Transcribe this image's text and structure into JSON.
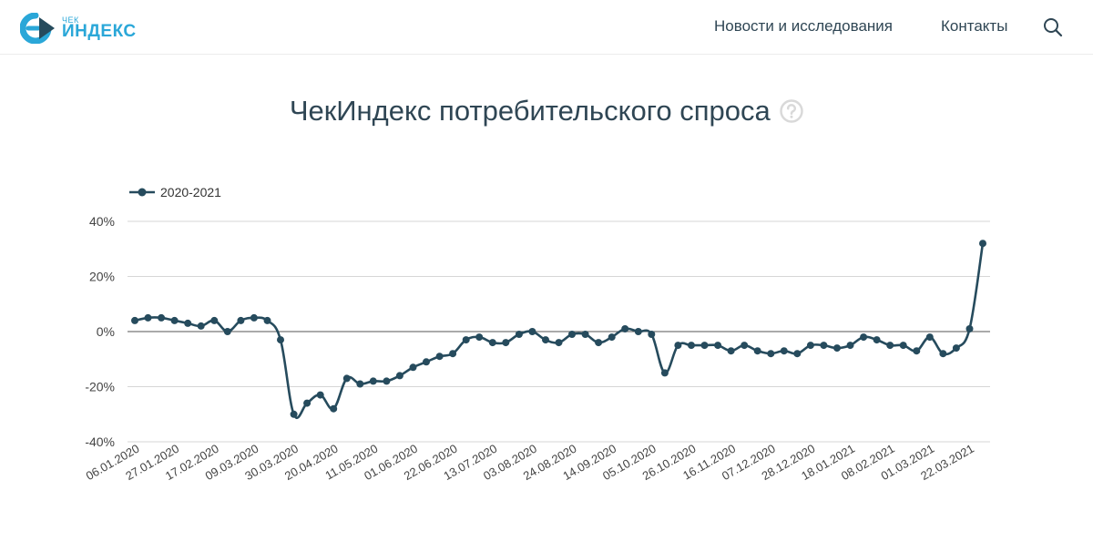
{
  "header": {
    "logo": {
      "small_text": "ЧЕК",
      "big_text": "ИНДЕКС"
    },
    "nav": {
      "news": "Новости и исследования",
      "contacts": "Контакты"
    },
    "search_icon": "search-icon"
  },
  "main": {
    "title": "ЧекИндекс потребительского спроса",
    "help_icon": "question-circle-icon"
  },
  "colors": {
    "series": "#264b5d",
    "text": "#2f4654",
    "axis_text": "#444444",
    "grid": "#d6d6d6",
    "zero_line": "#555555",
    "brand": "#2aa7d8",
    "help_icon": "#d9d9d9"
  },
  "chart_data": {
    "type": "line",
    "title": "",
    "xlabel": "",
    "ylabel": "",
    "legend_position": "top-left",
    "grid": true,
    "ylim": [
      -40,
      40
    ],
    "yticks": [
      -40,
      -20,
      0,
      20,
      40
    ],
    "ytick_labels": [
      "-40%",
      "-20%",
      "0%",
      "20%",
      "40%"
    ],
    "xtick_labels": [
      "06.01.2020",
      "27.01.2020",
      "17.02.2020",
      "09.03.2020",
      "30.03.2020",
      "20.04.2020",
      "11.05.2020",
      "01.06.2020",
      "22.06.2020",
      "13.07.2020",
      "03.08.2020",
      "24.08.2020",
      "14.09.2020",
      "05.10.2020",
      "26.10.2020",
      "16.11.2020",
      "07.12.2020",
      "28.12.2020",
      "18.01.2021",
      "08.02.2021",
      "01.03.2021",
      "22.03.2021"
    ],
    "series": [
      {
        "name": "2020-2021",
        "values": [
          4,
          5,
          5,
          4,
          3,
          2,
          4,
          0,
          4,
          5,
          4,
          -3,
          -30,
          -26,
          -23,
          -28,
          -17,
          -19,
          -18,
          -18,
          -16,
          -13,
          -11,
          -9,
          -8,
          -3,
          -2,
          -4,
          -4,
          -1,
          0,
          -3,
          -4,
          -1,
          -1,
          -4,
          -2,
          1,
          0,
          -1,
          -15,
          -5,
          -5,
          -5,
          -5,
          -7,
          -5,
          -7,
          -8,
          -7,
          -8,
          -5,
          -5,
          -6,
          -5,
          -2,
          -3,
          -5,
          -5,
          -7,
          -2,
          -8,
          -6,
          1,
          32
        ]
      }
    ]
  }
}
